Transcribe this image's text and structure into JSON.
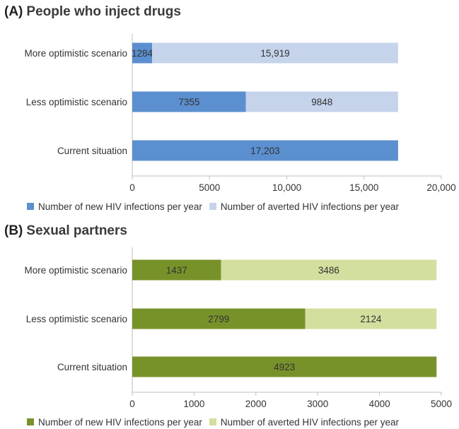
{
  "chart_data": [
    {
      "panel_letter": "(A)",
      "title": "People who inject drugs",
      "type": "bar",
      "orientation": "horizontal",
      "stacked": true,
      "categories": [
        "More optimistic scenario",
        "Less optimistic scenario",
        "Current situation"
      ],
      "series": [
        {
          "name": "Number of new HIV infections per year",
          "color": "#5b8fcf",
          "values": [
            1284,
            7355,
            17203
          ],
          "labels": [
            "1284",
            "7355",
            "17,203"
          ]
        },
        {
          "name": "Number of averted HIV infections per year",
          "color": "#c5d4eb",
          "values": [
            15919,
            9848,
            0
          ],
          "labels": [
            "15,919",
            "9848",
            ""
          ]
        }
      ],
      "xlim": [
        0,
        20000
      ],
      "xticks": [
        0,
        5000,
        10000,
        15000,
        20000
      ],
      "xtick_labels": [
        "0",
        "5000",
        "10,000",
        "15,000",
        "20,000"
      ],
      "legend_position": "bottom",
      "grid": false
    },
    {
      "panel_letter": "(B)",
      "title": "Sexual partners",
      "type": "bar",
      "orientation": "horizontal",
      "stacked": true,
      "categories": [
        "More optimistic scenario",
        "Less optimistic scenario",
        "Current situation"
      ],
      "series": [
        {
          "name": "Number of new HIV infections per year",
          "color": "#78922a",
          "values": [
            1437,
            2799,
            4923
          ],
          "labels": [
            "1437",
            "2799",
            "4923"
          ]
        },
        {
          "name": "Number of averted HIV infections per year",
          "color": "#d3df9e",
          "values": [
            3486,
            2124,
            0
          ],
          "labels": [
            "3486",
            "2124",
            ""
          ]
        }
      ],
      "xlim": [
        0,
        5000
      ],
      "xticks": [
        0,
        1000,
        2000,
        3000,
        4000,
        5000
      ],
      "xtick_labels": [
        "0",
        "1000",
        "2000",
        "3000",
        "4000",
        "5000"
      ],
      "legend_position": "bottom",
      "grid": false
    }
  ]
}
